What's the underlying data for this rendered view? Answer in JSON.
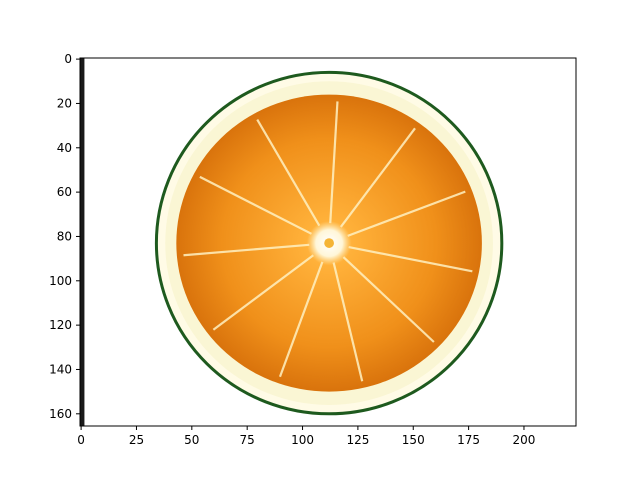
{
  "figure": {
    "background": "#ffffff",
    "image": {
      "subject": "orange slice cross-section on white background",
      "source_width": 224,
      "source_height": 166,
      "colors": {
        "pulp": "#f29a1b",
        "pulp_dark": "#d9730c",
        "pulp_light": "#ffc44d",
        "pith": "#fffbe6",
        "rind": "#1e5a1e",
        "center": "#ffffff"
      }
    },
    "x_axis": {
      "ticks": [
        "0",
        "25",
        "50",
        "75",
        "100",
        "125",
        "150",
        "175",
        "200"
      ],
      "tick_values": [
        0,
        25,
        50,
        75,
        100,
        125,
        150,
        175,
        200
      ],
      "range": [
        -0.5,
        223.5
      ]
    },
    "y_axis": {
      "ticks": [
        "0",
        "20",
        "40",
        "60",
        "80",
        "100",
        "120",
        "140",
        "160"
      ],
      "tick_values": [
        0,
        20,
        40,
        60,
        80,
        100,
        120,
        140,
        160
      ],
      "range": [
        165.5,
        -0.5
      ],
      "inverted": true
    }
  }
}
